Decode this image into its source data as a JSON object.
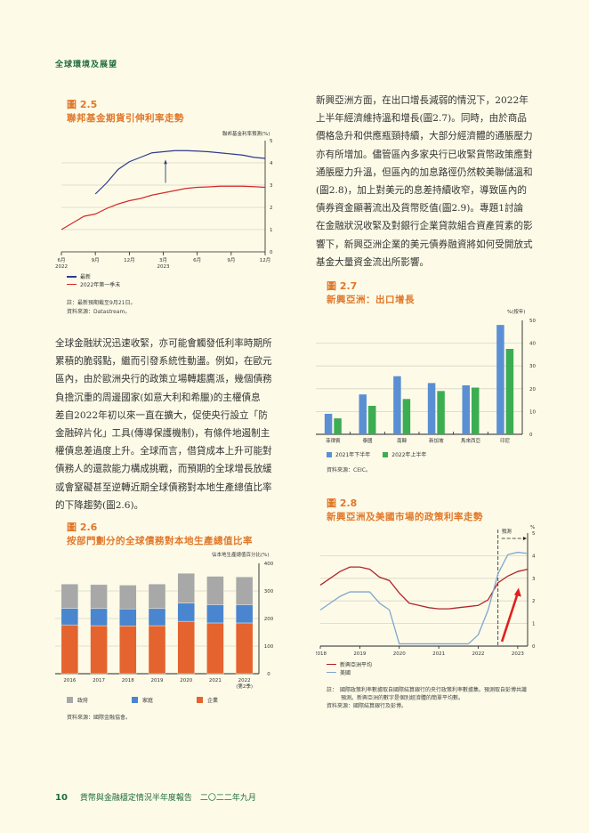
{
  "header": {
    "section": "全球環境及展望"
  },
  "fig25": {
    "num": "圖 2.5",
    "title": "聯邦基金期貨引伸利率走勢",
    "ylabel": "聯邦基金利率預測(%)",
    "legend": [
      "最新",
      "2022年第一季末"
    ],
    "note": "註：最新預期截至9月21日。",
    "source": "資料來源：Datastream。"
  },
  "fig26": {
    "num": "圖 2.6",
    "title": "按部門劃分的全球債務對本地生產總值比率",
    "ylabel": "佔本地生產總值百分比(%)",
    "legend": [
      "政府",
      "家庭",
      "企業"
    ],
    "source": "資料來源：國際金融協會。"
  },
  "fig27": {
    "num": "圖 2.7",
    "title": "新興亞洲：出口增長",
    "ylabel": "%(按年)",
    "legend": [
      "2021年下半年",
      "2022年上半年"
    ],
    "source": "資料來源：CEIC。"
  },
  "fig28": {
    "num": "圖 2.8",
    "title": "新興亞洲及美國市場的政策利率走勢",
    "ylabel": "%",
    "forecast_label": "預測",
    "legend": [
      "新興亞洲平均",
      "美國"
    ],
    "note1": "註：　國際政策利率數據取自國際結算銀行的央行政策利率數據集。預測取自彭博共識",
    "note2": "預測。新興亞洲的數字是個別經濟體的簡單平均數。",
    "source": "資料來源：國際結算銀行及彭博。"
  },
  "left_text": [
    "全球金融狀況迅速收緊，亦可能會觸發低利率時期所",
    "累積的脆弱點，繼而引發系統性動盪。例如，在歐元",
    "區內，由於歐洲央行的政策立場轉趨鷹派，幾個債務",
    "負擔沉重的周邊國家(如意大利和希臘)的主權債息",
    "差自2022年初以來一直在擴大，促使央行設立「防",
    "金融碎片化」工具(傳導保護機制)，有條件地遏制主",
    "權債息差過度上升。全球而言，借貸成本上升可能對",
    "債務人的還款能力構成挑戰，而預期的全球增長放緩",
    "或會窒礙甚至逆轉近期全球債務對本地生產總值比率",
    "的下降趨勢(圖2.6)。"
  ],
  "right_text": [
    "新興亞洲方面，在出口增長減弱的情況下，2022年",
    "上半年經濟維持溫和增長(圖2.7)。同時，由於商品",
    "價格急升和供應瓶頸持續，大部分經濟體的通脹壓力",
    "亦有所增加。儘管區內多家央行已收緊貨幣政策應對",
    "通脹壓力升溫，但區內的加息路徑仍然較美聯儲溫和",
    "(圖2.8)，加上對美元的息差持續收窄，導致區內的",
    "債券資金顯著流出及貨幣貶值(圖2.9)。專題1討論",
    "在金融狀況收緊及對銀行企業貸款組合資產質素的影",
    "響下，新興亞洲企業的美元債券融資將如何受開放式",
    "基金大量資金流出所影響。"
  ],
  "footer": {
    "page": "10",
    "title": "貨幣與金融穩定情況半年度報告　二〇二二年九月"
  },
  "colors": {
    "orange": "#e0782a",
    "green_header": "#1d6b3a",
    "navy": "#2e3a8c",
    "red": "#d42a2a",
    "corp": "#e4632e",
    "house": "#4a86cf",
    "gov": "#a8a8a8",
    "bar_blue": "#5b8fd4",
    "bar_green": "#3cad52",
    "em_line": "#b0262a",
    "us_line": "#7fa6cf"
  },
  "chart_data": [
    {
      "type": "line",
      "title": "聯邦基金期貨引伸利率走勢",
      "ylabel": "聯邦基金利率預測(%)",
      "ylim": [
        0,
        5
      ],
      "x_ticks": [
        "6月 2022",
        "9月",
        "12月",
        "3月 2023",
        "6月",
        "9月",
        "12月"
      ],
      "series": [
        {
          "name": "最新",
          "x": [
            "2022-09",
            "2022-10",
            "2022-11",
            "2022-12",
            "2023-01",
            "2023-02",
            "2023-03",
            "2023-04",
            "2023-05",
            "2023-06",
            "2023-07",
            "2023-08",
            "2023-09",
            "2023-10",
            "2023-11",
            "2023-12"
          ],
          "values": [
            2.6,
            3.1,
            3.7,
            4.05,
            4.25,
            4.45,
            4.5,
            4.55,
            4.55,
            4.53,
            4.5,
            4.45,
            4.4,
            4.35,
            4.25,
            4.2
          ]
        },
        {
          "name": "2022年第一季末",
          "x": [
            "2022-06",
            "2022-07",
            "2022-08",
            "2022-09",
            "2022-10",
            "2022-11",
            "2022-12",
            "2023-01",
            "2023-02",
            "2023-03",
            "2023-04",
            "2023-05",
            "2023-06",
            "2023-07",
            "2023-08",
            "2023-09",
            "2023-10",
            "2023-11",
            "2023-12"
          ],
          "values": [
            1.0,
            1.3,
            1.6,
            1.7,
            1.95,
            2.15,
            2.3,
            2.4,
            2.55,
            2.65,
            2.75,
            2.85,
            2.9,
            2.92,
            2.95,
            2.95,
            2.95,
            2.93,
            2.9
          ]
        }
      ]
    },
    {
      "type": "bar",
      "stacked": true,
      "title": "按部門劃分的全球債務對本地生產總值比率",
      "ylabel": "佔本地生產總值百分比(%)",
      "ylim": [
        0,
        400
      ],
      "categories": [
        "2016",
        "2017",
        "2018",
        "2019",
        "2020",
        "2021",
        "2022(第2季)"
      ],
      "series": [
        {
          "name": "企業",
          "values": [
            177,
            174,
            173,
            174,
            190,
            184,
            184
          ]
        },
        {
          "name": "家庭",
          "values": [
            60,
            62,
            62,
            62,
            66,
            66,
            66
          ]
        },
        {
          "name": "政府",
          "values": [
            88,
            87,
            86,
            89,
            108,
            103,
            101
          ]
        }
      ]
    },
    {
      "type": "bar",
      "title": "新興亞洲：出口增長",
      "ylabel": "%(按年)",
      "ylim": [
        0,
        50
      ],
      "categories": [
        "菲律賓",
        "泰國",
        "南韓",
        "新加坡",
        "馬來西亞",
        "印尼"
      ],
      "series": [
        {
          "name": "2021年下半年",
          "values": [
            9,
            17.5,
            25.5,
            22.5,
            21.5,
            48
          ]
        },
        {
          "name": "2022年上半年",
          "values": [
            7,
            12.5,
            15.5,
            19,
            20.5,
            37.5
          ]
        }
      ]
    },
    {
      "type": "line",
      "title": "新興亞洲及美國市場的政策利率走勢",
      "ylabel": "%",
      "ylim": [
        0,
        5
      ],
      "x_ticks": [
        "2018",
        "2019",
        "2020",
        "2021",
        "2022",
        "2023"
      ],
      "annotations": [
        "預測 (from 2022 Q3)"
      ],
      "series": [
        {
          "name": "新興亞洲平均",
          "x": [
            2018.0,
            2018.25,
            2018.5,
            2018.75,
            2019.0,
            2019.25,
            2019.5,
            2019.75,
            2020.0,
            2020.25,
            2020.5,
            2020.75,
            2021.0,
            2021.25,
            2021.5,
            2021.75,
            2022.0,
            2022.25,
            2022.5,
            2022.75,
            2023.0,
            2023.25
          ],
          "values": [
            2.7,
            3.0,
            3.3,
            3.5,
            3.5,
            3.4,
            3.05,
            2.9,
            2.35,
            1.9,
            1.8,
            1.7,
            1.65,
            1.65,
            1.7,
            1.75,
            1.8,
            2.05,
            2.8,
            3.1,
            3.3,
            3.4
          ]
        },
        {
          "name": "美國",
          "x": [
            2018.0,
            2018.25,
            2018.5,
            2018.75,
            2019.0,
            2019.25,
            2019.5,
            2019.75,
            2020.0,
            2020.25,
            2020.5,
            2020.75,
            2021.0,
            2021.25,
            2021.5,
            2021.75,
            2022.0,
            2022.25,
            2022.5,
            2022.75,
            2023.0,
            2023.25
          ],
          "values": [
            1.6,
            1.9,
            2.2,
            2.4,
            2.4,
            2.4,
            1.9,
            1.6,
            0.1,
            0.1,
            0.1,
            0.1,
            0.1,
            0.1,
            0.1,
            0.1,
            0.5,
            1.6,
            3.2,
            4.05,
            4.15,
            4.1
          ]
        }
      ]
    }
  ]
}
